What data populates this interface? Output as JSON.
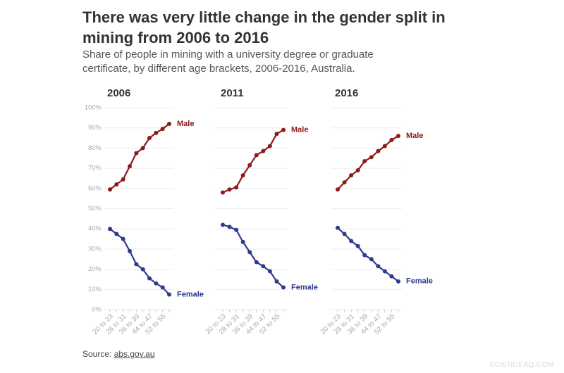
{
  "title": "There was very little change in the gender split in mining from 2006 to 2016",
  "subtitle": "Share of people in mining with a university degree or graduate certificate, by different age brackets, 2006-2016, Australia.",
  "source_label": "Source:",
  "source_link": "abs.gov.au",
  "watermark": "SCIENCEAQ.COM",
  "chart_data": [
    {
      "type": "line",
      "title": "2006",
      "categories": [
        "20 to 23",
        null,
        "28 to 31",
        null,
        "36 to 39",
        null,
        "44 to 47",
        null,
        "52 to 55",
        null
      ],
      "series": [
        {
          "name": "Male",
          "color": "#8b1a1a",
          "values": [
            59.5,
            62,
            64.5,
            71,
            77.5,
            80,
            85,
            87.5,
            89.5,
            92
          ]
        },
        {
          "name": "Female",
          "color": "#2e3a8c",
          "values": [
            40,
            37.5,
            35,
            29,
            22.5,
            20,
            15.5,
            13,
            11,
            7.5
          ]
        }
      ],
      "ylim": [
        0,
        100
      ],
      "yticks": [
        {
          "value": 0,
          "label": "0%"
        },
        {
          "value": 10,
          "label": "10%"
        },
        {
          "value": 20,
          "label": "20%"
        },
        {
          "value": 30,
          "label": "30%"
        },
        {
          "value": 40,
          "label": "40%"
        },
        {
          "value": 50,
          "label": "50%"
        },
        {
          "value": 60,
          "label": "60%"
        },
        {
          "value": 70,
          "label": "70%"
        },
        {
          "value": 80,
          "label": "80%"
        },
        {
          "value": 90,
          "label": "90%"
        },
        {
          "value": 100,
          "label": "100%"
        }
      ],
      "grid": true
    },
    {
      "type": "line",
      "title": "2011",
      "categories": [
        "20 to 23",
        null,
        "28 to 31",
        null,
        "36 to 39",
        null,
        "44 to 47",
        null,
        "52 to 55",
        null
      ],
      "series": [
        {
          "name": "Male",
          "color": "#8b1a1a",
          "values": [
            58,
            59.5,
            60.5,
            66.5,
            71.5,
            76.5,
            78.5,
            81,
            87,
            89
          ]
        },
        {
          "name": "Female",
          "color": "#2e3a8c",
          "values": [
            42,
            41,
            39.5,
            33.5,
            28.5,
            23.5,
            21.5,
            19,
            14,
            11
          ]
        }
      ],
      "ylim": [
        0,
        100
      ],
      "yticks": [
        0,
        10,
        20,
        30,
        40,
        50,
        60,
        70,
        80,
        90,
        100
      ],
      "grid": true
    },
    {
      "type": "line",
      "title": "2016",
      "categories": [
        "20 to 23",
        null,
        "28 to 31",
        null,
        "36 to 39",
        null,
        "44 to 47",
        null,
        "52 to 55",
        null
      ],
      "series": [
        {
          "name": "Male",
          "color": "#8b1a1a",
          "values": [
            59.5,
            63,
            66.5,
            69,
            73.5,
            75.5,
            78.5,
            81,
            84,
            86
          ]
        },
        {
          "name": "Female",
          "color": "#2e3a8c",
          "values": [
            40.5,
            37.5,
            34,
            31.5,
            27,
            25,
            21.5,
            19,
            16.5,
            14
          ]
        }
      ],
      "ylim": [
        0,
        100
      ],
      "yticks": [
        0,
        10,
        20,
        30,
        40,
        50,
        60,
        70,
        80,
        90,
        100
      ],
      "grid": true
    }
  ]
}
